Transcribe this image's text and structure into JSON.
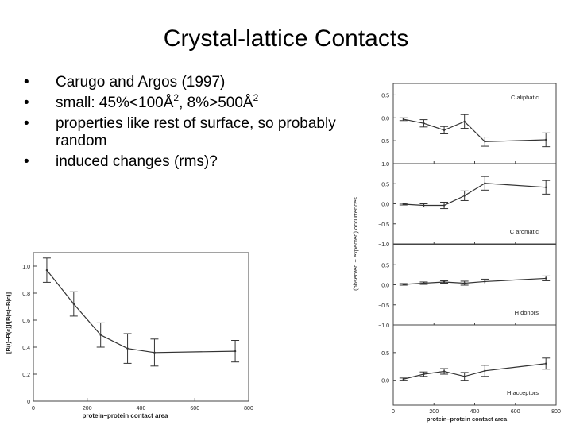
{
  "slide": {
    "title": "Crystal-lattice Contacts",
    "bullets": [
      {
        "text": "Carugo and Argos (1997)"
      },
      {
        "text": "small: 45%<100Å",
        "sup": "2",
        "text2": ", 8%>500Å",
        "sup2": "2"
      },
      {
        "text": "properties like rest of surface, so probably random"
      },
      {
        "text": "induced changes (rms)?"
      }
    ]
  },
  "chart_data": [
    {
      "type": "line",
      "title": "",
      "xlabel": "protein–protein contact area",
      "ylabel": "[B(i)−B(c)]/[B(s)−B(c)]",
      "xlim": [
        0,
        800
      ],
      "ylim": [
        0,
        1.1
      ],
      "xticks": [
        "0",
        "200",
        "400",
        "600",
        "800"
      ],
      "yticks": [
        "0",
        "0.2",
        "0.4",
        "0.6",
        "0.8",
        "1.0"
      ],
      "x": [
        50,
        150,
        250,
        350,
        450,
        750
      ],
      "values": [
        0.97,
        0.72,
        0.49,
        0.39,
        0.36,
        0.37
      ],
      "errors": [
        0.09,
        0.09,
        0.09,
        0.11,
        0.1,
        0.08
      ]
    },
    {
      "type": "line",
      "ylabel": "(observed − expected) occurrences",
      "xlabel": "protein–protein contact area",
      "xlim": [
        0,
        800
      ],
      "xticks": [
        "0",
        "200",
        "400",
        "600",
        "800"
      ],
      "panels": [
        {
          "label": "C aliphatic",
          "yticks": [
            "0.5",
            "0.0",
            "−0.5",
            "−1.0"
          ],
          "ylim": [
            -1.0,
            0.75
          ],
          "x": [
            50,
            150,
            250,
            350,
            450,
            750
          ],
          "values": [
            -0.03,
            -0.12,
            -0.27,
            -0.08,
            -0.52,
            -0.48
          ],
          "errors": [
            0.03,
            0.08,
            0.08,
            0.15,
            0.1,
            0.15
          ]
        },
        {
          "label": "C aromatic",
          "yticks": [
            "0.5",
            "0.0",
            "−0.5",
            "−1.0"
          ],
          "ylim": [
            -1.0,
            1.0
          ],
          "x": [
            50,
            150,
            250,
            350,
            450,
            750
          ],
          "values": [
            -0.01,
            -0.04,
            -0.04,
            0.2,
            0.51,
            0.41
          ],
          "errors": [
            0.02,
            0.04,
            0.08,
            0.12,
            0.17,
            0.17
          ]
        },
        {
          "label": "H donors",
          "yticks": [
            "0.5",
            "0.0",
            "−0.5",
            "−1.0"
          ],
          "ylim": [
            -1.0,
            1.0
          ],
          "x": [
            50,
            150,
            250,
            350,
            450,
            750
          ],
          "values": [
            0.01,
            0.04,
            0.07,
            0.04,
            0.08,
            0.16
          ],
          "errors": [
            0.02,
            0.03,
            0.03,
            0.05,
            0.06,
            0.06
          ]
        },
        {
          "label": "H acceptors",
          "yticks": [
            "0.5",
            "0.0"
          ],
          "ylim": [
            -0.45,
            1.0
          ],
          "x": [
            50,
            150,
            250,
            350,
            450,
            750
          ],
          "values": [
            0.02,
            0.11,
            0.16,
            0.07,
            0.17,
            0.3
          ],
          "errors": [
            0.02,
            0.04,
            0.05,
            0.07,
            0.1,
            0.1
          ]
        }
      ]
    }
  ]
}
